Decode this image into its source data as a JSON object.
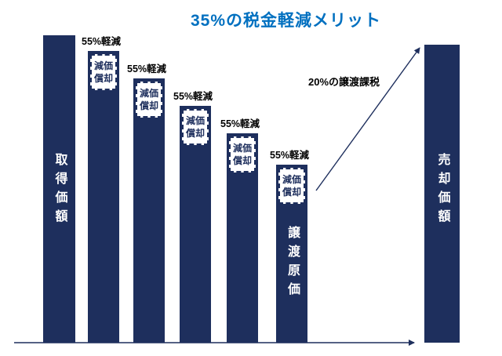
{
  "title": "35%の税金軽減メリット",
  "colors": {
    "bar": "#1e2f5d",
    "title": "#0070c0",
    "box_bg": "#ffffff",
    "box_border": "#1e2f5d",
    "axis": "#1e2f5d"
  },
  "labels": {
    "first_bar": "取得価額",
    "cost_bar": "譲渡原価",
    "last_bar": "売却価額",
    "reduction": "55%軽減",
    "depreciation": "減価償却",
    "transfer_tax": "20%の譲渡課税"
  },
  "chart_data": {
    "type": "bar",
    "title": "35%の税金軽減メリット",
    "categories": [
      "取得価額",
      "",
      "",
      "",
      "",
      "譲渡原価",
      "売却価額"
    ],
    "values": [
      100,
      95,
      86,
      77,
      68,
      58,
      97
    ],
    "ylim": [
      0,
      100
    ],
    "xlabel": "",
    "ylabel": "",
    "grid": false,
    "legend": "none",
    "value_note": "No numeric axis shown; values are relative bar heights (% of tallest bar) estimated from pixels.",
    "annotations": [
      {
        "text": "55%軽減",
        "applies_to_bars": [
          2,
          3,
          4,
          5,
          6
        ],
        "position": "above each depreciation box"
      },
      {
        "text": "減価償却",
        "style": "white dashed-border box at top of bars 2-6"
      },
      {
        "text": "20%の譲渡課税",
        "style": "diagonal arrow from top of 譲渡原価 bar to top of 売却価額 bar"
      }
    ],
    "axis_style": "horizontal baseline arrow pointing right under bars"
  }
}
